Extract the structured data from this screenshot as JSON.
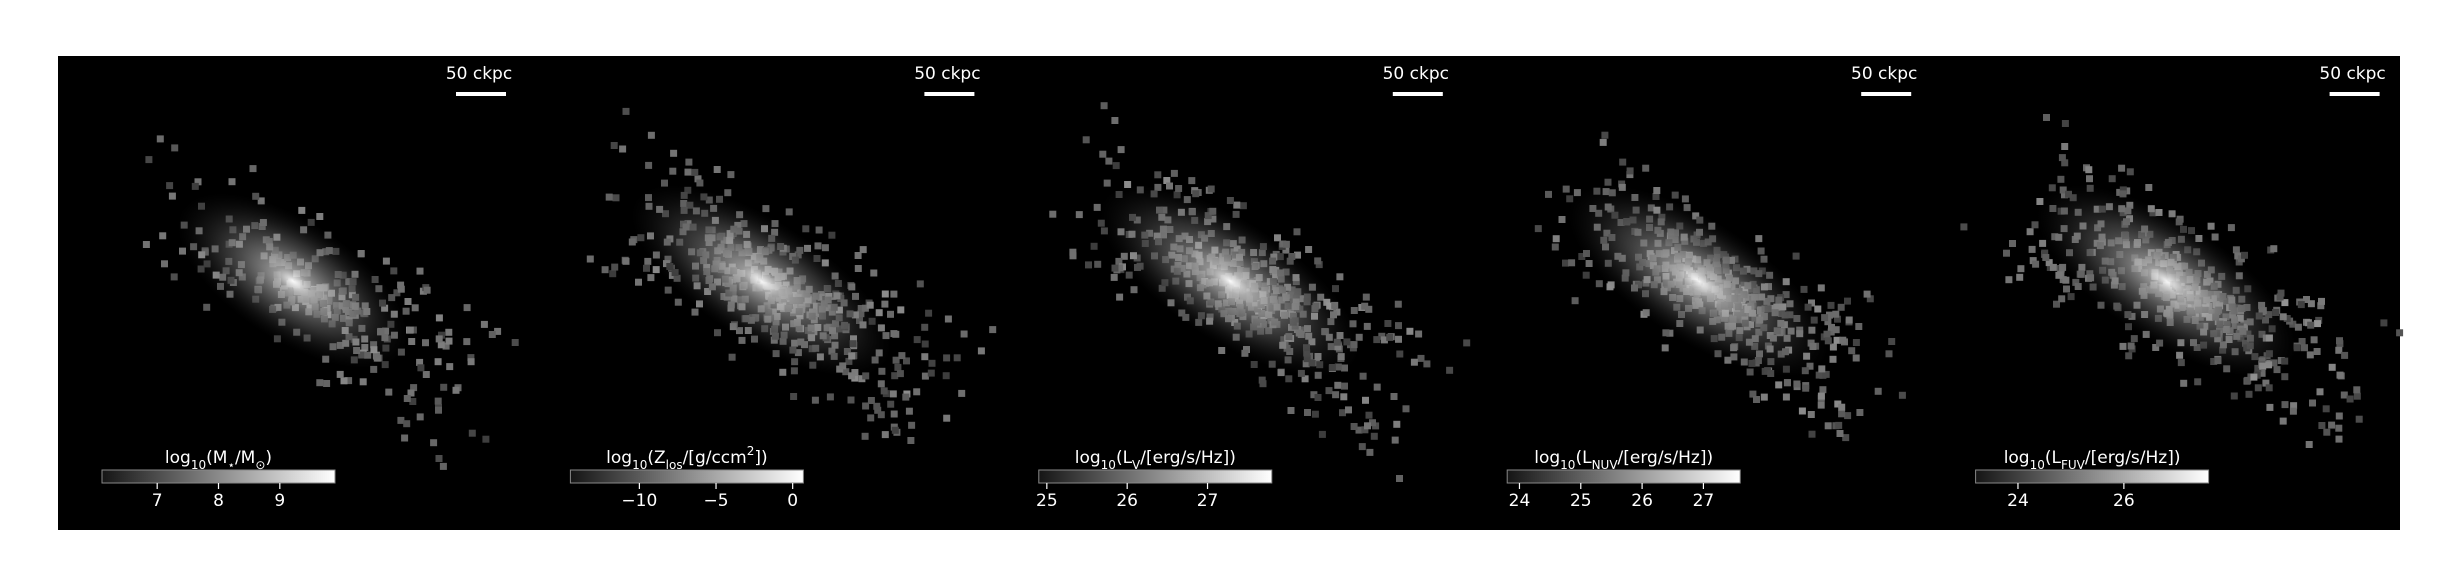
{
  "panels": [
    {
      "scale_bar": "50 ckpc",
      "colorbar": {
        "label": [
          {
            "text": "log",
            "sub": false
          },
          {
            "text": "10",
            "sub": true
          },
          {
            "text": "(M",
            "sub": false
          },
          {
            "text": "⋆",
            "sub": true
          },
          {
            "text": "/M",
            "sub": false
          },
          {
            "text": "⊙",
            "sub": true
          },
          {
            "text": ")",
            "sub": false
          }
        ],
        "clim": [
          6.1,
          9.9
        ],
        "ticks": [
          7,
          8,
          9
        ]
      }
    },
    {
      "scale_bar": "50 ckpc",
      "colorbar": {
        "label": [
          {
            "text": "log",
            "sub": false
          },
          {
            "text": "10",
            "sub": true
          },
          {
            "text": "(Z",
            "sub": false
          },
          {
            "text": "los",
            "sub": true
          },
          {
            "text": "/[g/ccm",
            "sub": false
          },
          {
            "text": "2",
            "sub": "sup"
          },
          {
            "text": "])",
            "sub": false
          }
        ],
        "clim": [
          -14.5,
          0.7
        ],
        "ticks": [
          {
            "value": -10,
            "label": "−10"
          },
          {
            "value": -5,
            "label": "−5"
          },
          0
        ]
      }
    },
    {
      "scale_bar": "50 ckpc",
      "colorbar": {
        "label": [
          {
            "text": "log",
            "sub": false
          },
          {
            "text": "10",
            "sub": true
          },
          {
            "text": "(L",
            "sub": false
          },
          {
            "text": "V",
            "sub": true
          },
          {
            "text": "/[erg/s/Hz])",
            "sub": false
          }
        ],
        "clim": [
          24.9,
          27.8
        ],
        "ticks": [
          25,
          26,
          27
        ]
      }
    },
    {
      "scale_bar": "50 ckpc",
      "colorbar": {
        "label": [
          {
            "text": "log",
            "sub": false
          },
          {
            "text": "10",
            "sub": true
          },
          {
            "text": "(L",
            "sub": false
          },
          {
            "text": "NUV",
            "sub": true
          },
          {
            "text": "/[erg/s/Hz])",
            "sub": false
          }
        ],
        "clim": [
          23.8,
          27.6
        ],
        "ticks": [
          24,
          25,
          26,
          27
        ]
      }
    },
    {
      "scale_bar": "50 ckpc",
      "colorbar": {
        "label": [
          {
            "text": "log",
            "sub": false
          },
          {
            "text": "10",
            "sub": true
          },
          {
            "text": "(L",
            "sub": false
          },
          {
            "text": "FUV",
            "sub": true
          },
          {
            "text": "/[erg/s/Hz])",
            "sub": false
          }
        ],
        "clim": [
          23.2,
          27.6
        ],
        "ticks": [
          24,
          26
        ]
      }
    }
  ]
}
